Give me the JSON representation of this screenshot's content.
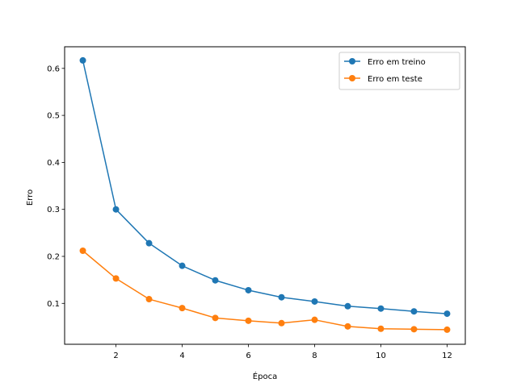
{
  "chart_data": {
    "type": "line",
    "title": "",
    "xlabel": "Época",
    "ylabel": "Erro",
    "xlim": [
      0.45,
      12.55
    ],
    "ylim": [
      0.013,
      0.646
    ],
    "x": [
      1,
      2,
      3,
      4,
      5,
      6,
      7,
      8,
      9,
      10,
      11,
      12
    ],
    "xticks": [
      2,
      4,
      6,
      8,
      10,
      12
    ],
    "yticks": [
      0.1,
      0.2,
      0.3,
      0.4,
      0.5,
      0.6
    ],
    "xtick_labels": [
      "2",
      "4",
      "6",
      "8",
      "10",
      "12"
    ],
    "ytick_labels": [
      "0.1",
      "0.2",
      "0.3",
      "0.4",
      "0.5",
      "0.6"
    ],
    "grid": false,
    "legend_position": "top-right",
    "series": [
      {
        "name": "Erro em treino",
        "color": "#1f77b4",
        "marker": "circle",
        "values": [
          0.617,
          0.3,
          0.228,
          0.18,
          0.149,
          0.128,
          0.113,
          0.104,
          0.094,
          0.089,
          0.083,
          0.078
        ]
      },
      {
        "name": "Erro em teste",
        "color": "#ff7f0e",
        "marker": "circle",
        "values": [
          0.212,
          0.153,
          0.109,
          0.09,
          0.069,
          0.063,
          0.058,
          0.065,
          0.051,
          0.046,
          0.045,
          0.044
        ]
      }
    ]
  }
}
